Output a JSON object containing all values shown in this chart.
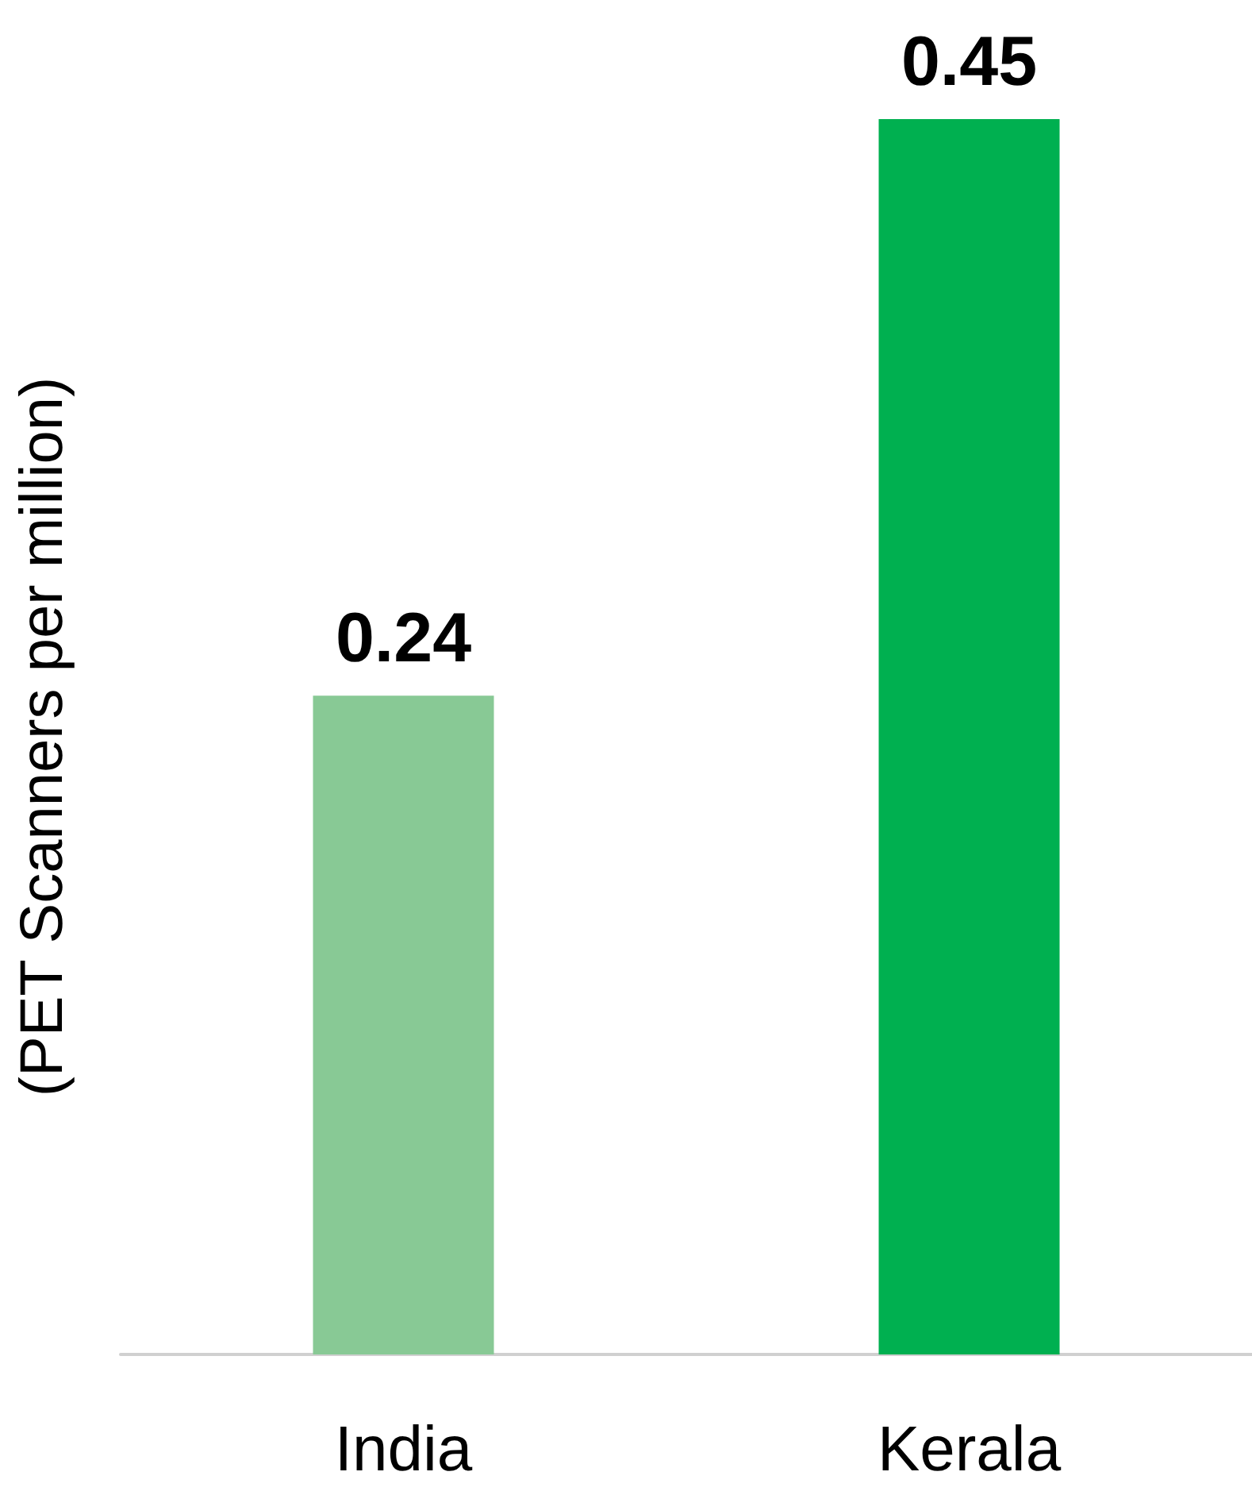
{
  "chart_data": {
    "type": "bar",
    "ylabel": "(PET Scanners per million)",
    "categories": [
      "India",
      "Kerala"
    ],
    "values": [
      0.24,
      0.45
    ],
    "colors": [
      "#88c995",
      "#00b050"
    ],
    "data_labels": true
  }
}
